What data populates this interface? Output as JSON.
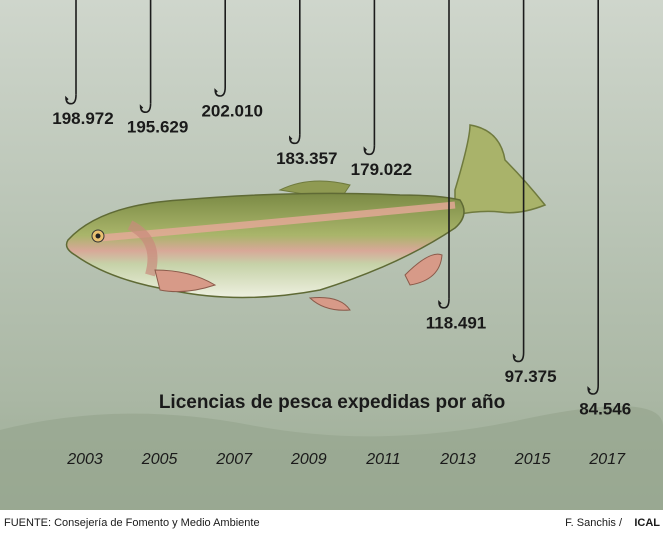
{
  "chart_data": {
    "type": "bar",
    "title": "Licencias de pesca expedidas por año",
    "categories": [
      "2003",
      "2005",
      "2007",
      "2009",
      "2011",
      "2013",
      "2015",
      "2017"
    ],
    "values": [
      198972,
      195629,
      202010,
      183357,
      179022,
      118491,
      97375,
      84546
    ],
    "value_labels": [
      "198.972",
      "195.629",
      "202.010",
      "183.357",
      "179.022",
      "118.491",
      "97.375",
      "84.546"
    ],
    "color": "#1c1c1c",
    "source": "FUENTE: Consejería de Fomento y Medio Ambiente",
    "credit_author": "F. Sanchis /",
    "credit_agency": "ICAL"
  }
}
